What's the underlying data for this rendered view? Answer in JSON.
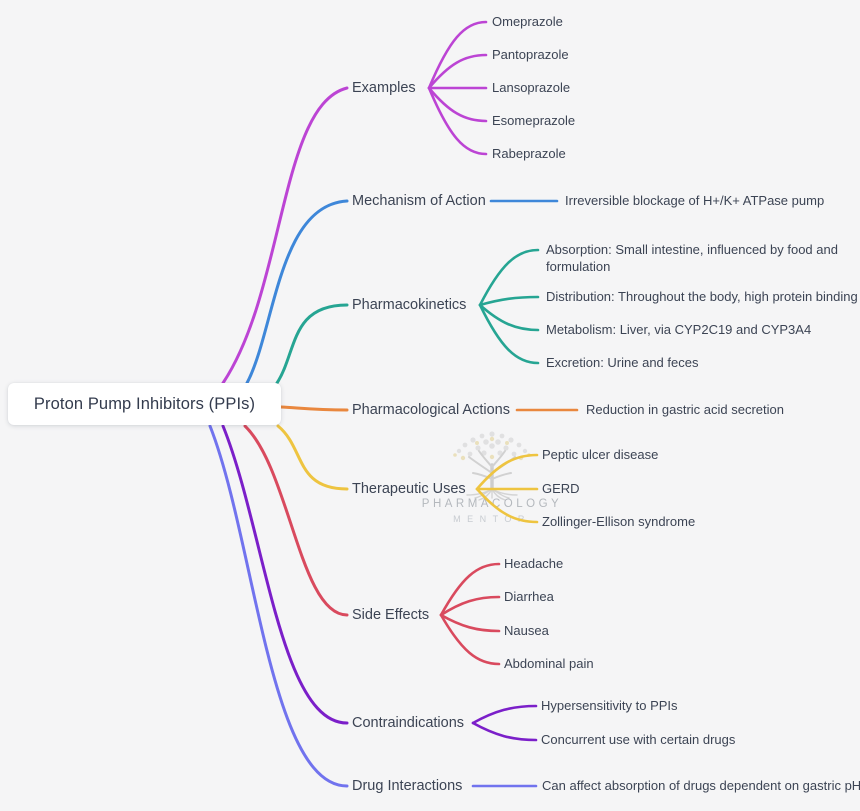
{
  "root": {
    "label": "Proton Pump Inhibitors (PPIs)"
  },
  "watermark": {
    "line1": "PHARMACOLOGY",
    "line2": "MENTOR"
  },
  "palette": {
    "background": "#f5f5f6",
    "node_text": "#3c4454",
    "root_text": "#333b4d",
    "root_bg": "#ffffff",
    "watermark_text": "#b4b8bd"
  },
  "branches": [
    {
      "label": "Examples",
      "color": "#bc44d4",
      "children": [
        "Omeprazole",
        "Pantoprazole",
        "Lansoprazole",
        "Esomeprazole",
        "Rabeprazole"
      ]
    },
    {
      "label": "Mechanism of Action",
      "color": "#3e87d9",
      "children": [
        "Irreversible blockage of H+/K+ ATPase pump"
      ]
    },
    {
      "label": "Pharmacokinetics",
      "color": "#26a593",
      "children": [
        "Absorption: Small intestine, influenced by food and formulation",
        "Distribution: Throughout the body, high protein binding",
        "Metabolism: Liver, via CYP2C19 and CYP3A4",
        "Excretion: Urine and feces"
      ]
    },
    {
      "label": "Pharmacological Actions",
      "color": "#e9873e",
      "children": [
        "Reduction in gastric acid secretion"
      ]
    },
    {
      "label": "Therapeutic Uses",
      "color": "#eec440",
      "children": [
        "Peptic ulcer disease",
        "GERD",
        "Zollinger-Ellison syndrome"
      ]
    },
    {
      "label": "Side Effects",
      "color": "#d94a5e",
      "children": [
        "Headache",
        "Diarrhea",
        "Nausea",
        "Abdominal pain"
      ]
    },
    {
      "label": "Contraindications",
      "color": "#7b1fc9",
      "children": [
        "Hypersensitivity to PPIs",
        "Concurrent use with certain drugs"
      ]
    },
    {
      "label": "Drug Interactions",
      "color": "#7173ee",
      "children": [
        "Can affect absorption of drugs dependent on gastric pH"
      ]
    }
  ]
}
